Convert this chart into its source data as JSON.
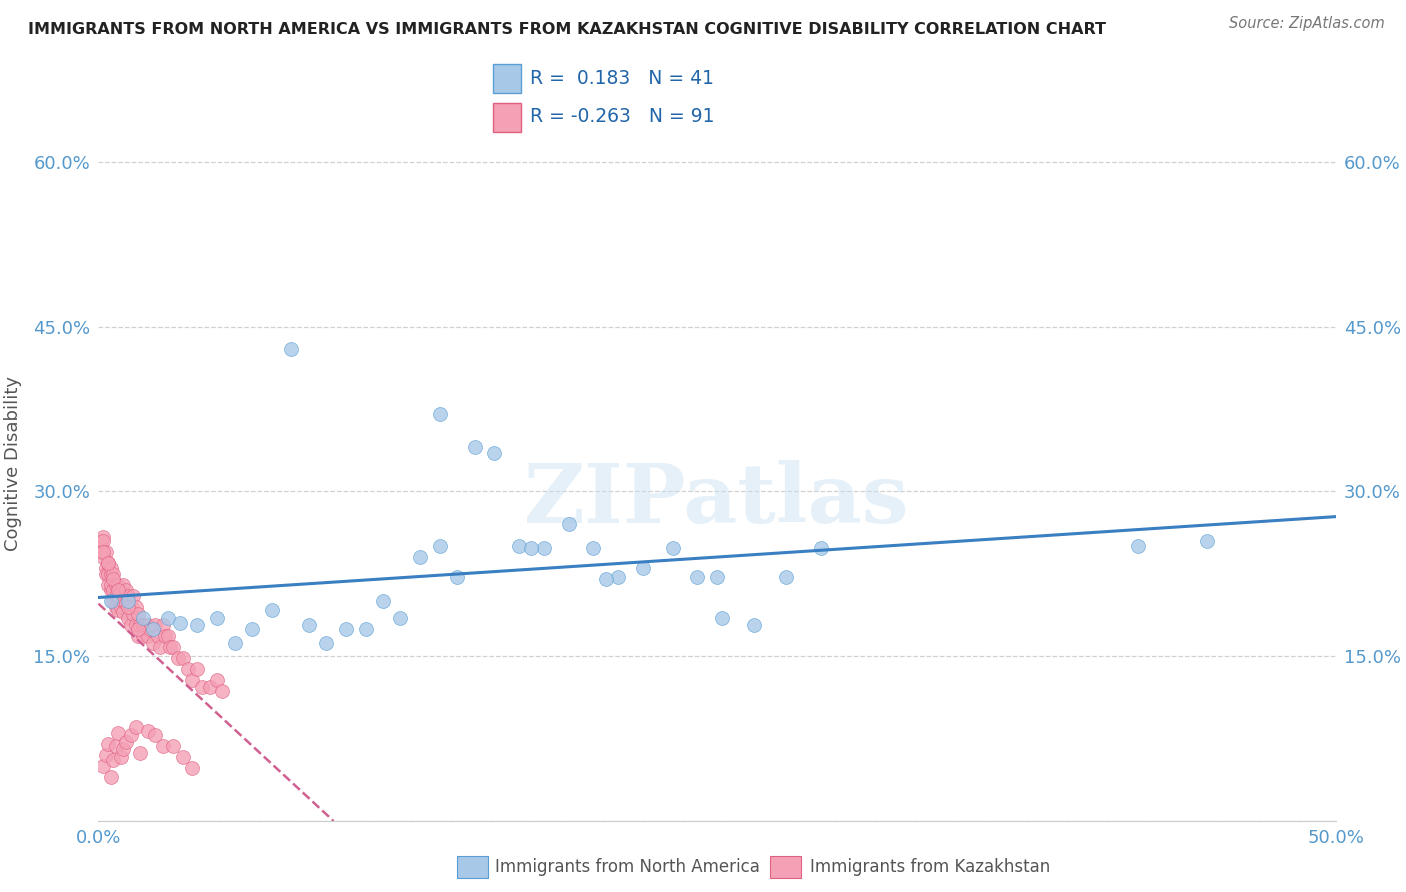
{
  "title": "IMMIGRANTS FROM NORTH AMERICA VS IMMIGRANTS FROM KAZAKHSTAN COGNITIVE DISABILITY CORRELATION CHART",
  "source": "Source: ZipAtlas.com",
  "ylabel": "Cognitive Disability",
  "xlim": [
    0.0,
    0.5
  ],
  "ylim": [
    0.0,
    0.65
  ],
  "xticks": [
    0.0,
    0.1,
    0.2,
    0.3,
    0.4,
    0.5
  ],
  "xticklabels": [
    "0.0%",
    "",
    "",
    "",
    "",
    "50.0%"
  ],
  "yticks": [
    0.0,
    0.15,
    0.3,
    0.45,
    0.6
  ],
  "left_yticklabels": [
    "",
    "15.0%",
    "30.0%",
    "45.0%",
    "60.0%"
  ],
  "right_yticklabels": [
    "",
    "15.0%",
    "30.0%",
    "45.0%",
    "60.0%"
  ],
  "watermark": "ZIPatlas",
  "legend_r1": "R =  0.183",
  "legend_n1": "N = 41",
  "legend_r2": "R = -0.263",
  "legend_n2": "N = 91",
  "blue_color": "#a8c8e8",
  "blue_edge_color": "#5a9fd4",
  "pink_color": "#f4a0b5",
  "pink_edge_color": "#e06080",
  "blue_line_color": "#3a7fc1",
  "pink_line_color": "#d06090",
  "grid_color": "#cccccc",
  "background_color": "#ffffff",
  "tick_color": "#5599cc",
  "title_color": "#222222",
  "source_color": "#777777",
  "ylabel_color": "#555555",
  "legend_text_color": "#2266aa",
  "bottom_legend_color": "#555555",
  "na_x": [
    0.005,
    0.012,
    0.018,
    0.022,
    0.028,
    0.033,
    0.04,
    0.048,
    0.055,
    0.062,
    0.07,
    0.078,
    0.085,
    0.092,
    0.1,
    0.108,
    0.115,
    0.122,
    0.13,
    0.138,
    0.145,
    0.152,
    0.16,
    0.17,
    0.18,
    0.19,
    0.2,
    0.21,
    0.22,
    0.232,
    0.242,
    0.252,
    0.265,
    0.278,
    0.292,
    0.25,
    0.205,
    0.175,
    0.138,
    0.42,
    0.448
  ],
  "na_y": [
    0.2,
    0.2,
    0.185,
    0.175,
    0.185,
    0.18,
    0.178,
    0.185,
    0.162,
    0.175,
    0.192,
    0.43,
    0.178,
    0.162,
    0.175,
    0.175,
    0.2,
    0.185,
    0.24,
    0.25,
    0.222,
    0.34,
    0.335,
    0.25,
    0.248,
    0.27,
    0.248,
    0.222,
    0.23,
    0.248,
    0.222,
    0.185,
    0.178,
    0.222,
    0.248,
    0.222,
    0.22,
    0.248,
    0.37,
    0.25,
    0.255
  ],
  "kaz_x": [
    0.001,
    0.001,
    0.002,
    0.002,
    0.002,
    0.003,
    0.003,
    0.003,
    0.004,
    0.004,
    0.004,
    0.005,
    0.005,
    0.005,
    0.005,
    0.006,
    0.006,
    0.006,
    0.007,
    0.007,
    0.007,
    0.008,
    0.008,
    0.008,
    0.009,
    0.009,
    0.01,
    0.01,
    0.01,
    0.011,
    0.011,
    0.012,
    0.012,
    0.013,
    0.013,
    0.014,
    0.014,
    0.015,
    0.015,
    0.016,
    0.016,
    0.017,
    0.018,
    0.018,
    0.019,
    0.02,
    0.02,
    0.021,
    0.022,
    0.023,
    0.024,
    0.025,
    0.026,
    0.027,
    0.028,
    0.029,
    0.03,
    0.032,
    0.034,
    0.036,
    0.038,
    0.04,
    0.042,
    0.045,
    0.048,
    0.05,
    0.002,
    0.003,
    0.004,
    0.005,
    0.006,
    0.007,
    0.008,
    0.009,
    0.01,
    0.011,
    0.013,
    0.015,
    0.017,
    0.02,
    0.023,
    0.026,
    0.03,
    0.034,
    0.038,
    0.002,
    0.004,
    0.006,
    0.008,
    0.012,
    0.016
  ],
  "kaz_y": [
    0.255,
    0.245,
    0.258,
    0.24,
    0.255,
    0.23,
    0.245,
    0.225,
    0.225,
    0.215,
    0.235,
    0.225,
    0.21,
    0.23,
    0.215,
    0.21,
    0.225,
    0.2,
    0.215,
    0.205,
    0.195,
    0.205,
    0.215,
    0.192,
    0.208,
    0.195,
    0.215,
    0.2,
    0.19,
    0.198,
    0.21,
    0.205,
    0.185,
    0.178,
    0.195,
    0.188,
    0.205,
    0.178,
    0.195,
    0.168,
    0.188,
    0.178,
    0.178,
    0.168,
    0.178,
    0.168,
    0.178,
    0.175,
    0.162,
    0.178,
    0.168,
    0.158,
    0.178,
    0.168,
    0.168,
    0.158,
    0.158,
    0.148,
    0.148,
    0.138,
    0.128,
    0.138,
    0.122,
    0.122,
    0.128,
    0.118,
    0.05,
    0.06,
    0.07,
    0.04,
    0.055,
    0.068,
    0.08,
    0.058,
    0.065,
    0.072,
    0.078,
    0.085,
    0.062,
    0.082,
    0.078,
    0.068,
    0.068,
    0.058,
    0.048,
    0.245,
    0.235,
    0.22,
    0.21,
    0.195,
    0.175
  ]
}
